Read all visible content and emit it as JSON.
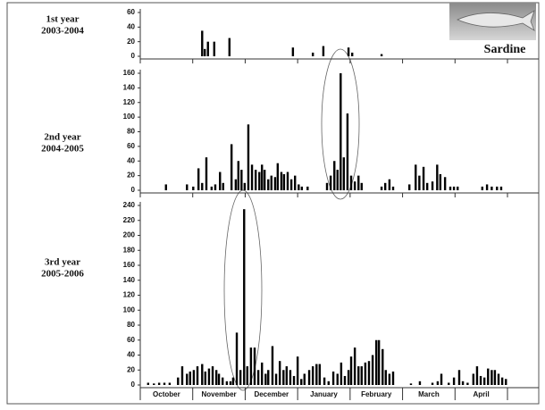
{
  "chart_data": [
    {
      "type": "bar",
      "title": "1st year",
      "subtitle": "2003-2004",
      "annotation": "Sardine",
      "color": "#000000",
      "xlim": [
        0,
        7
      ],
      "ylim": [
        0,
        60
      ],
      "yticks": [
        0,
        20,
        40,
        60
      ],
      "x": [
        1.18,
        1.23,
        1.29,
        1.41,
        1.7,
        2.91,
        3.29,
        3.49,
        3.97,
        4.04,
        4.6
      ],
      "values": [
        35,
        10,
        20,
        20,
        25,
        12,
        5,
        14,
        12,
        5,
        3
      ]
    },
    {
      "type": "bar",
      "title": "2nd year",
      "subtitle": "2004-2005",
      "color": "#000000",
      "xlim": [
        0,
        7
      ],
      "ylim": [
        0,
        160
      ],
      "yticks": [
        0,
        20,
        40,
        60,
        80,
        100,
        120,
        140,
        160
      ],
      "x": [
        0.49,
        0.89,
        1.01,
        1.11,
        1.18,
        1.26,
        1.36,
        1.43,
        1.52,
        1.58,
        1.74,
        1.82,
        1.87,
        1.93,
        1.99,
        2.06,
        2.13,
        2.2,
        2.27,
        2.32,
        2.37,
        2.44,
        2.5,
        2.57,
        2.62,
        2.69,
        2.74,
        2.81,
        2.88,
        2.95,
        3.02,
        3.08,
        3.19,
        3.56,
        3.63,
        3.7,
        3.76,
        3.82,
        3.88,
        3.95,
        4.02,
        4.09,
        4.16,
        4.22,
        4.6,
        4.67,
        4.75,
        4.82,
        5.13,
        5.25,
        5.32,
        5.4,
        5.47,
        5.57,
        5.66,
        5.72,
        5.81,
        5.91,
        5.98,
        6.05,
        6.52,
        6.61,
        6.7,
        6.8,
        6.88
      ],
      "values": [
        8,
        8,
        5,
        30,
        10,
        45,
        5,
        8,
        25,
        10,
        63,
        15,
        40,
        28,
        10,
        90,
        35,
        28,
        25,
        35,
        28,
        15,
        20,
        18,
        37,
        25,
        22,
        25,
        15,
        20,
        8,
        5,
        5,
        10,
        20,
        40,
        28,
        160,
        45,
        105,
        20,
        12,
        20,
        10,
        5,
        10,
        15,
        5,
        8,
        35,
        20,
        32,
        10,
        12,
        35,
        22,
        18,
        5,
        5,
        5,
        5,
        8,
        5,
        5,
        5
      ]
    },
    {
      "type": "bar",
      "title": "3rd year",
      "subtitle": "2005-2006",
      "color": "#000000",
      "categories": [
        "October",
        "November",
        "December",
        "January",
        "February",
        "March",
        "April"
      ],
      "xlim": [
        0,
        7
      ],
      "ylim": [
        0,
        240
      ],
      "yticks": [
        0,
        20,
        40,
        60,
        80,
        100,
        120,
        140,
        160,
        180,
        200,
        220,
        240
      ],
      "x": [
        0.15,
        0.26,
        0.36,
        0.46,
        0.56,
        0.72,
        0.8,
        0.89,
        0.95,
        1.02,
        1.09,
        1.18,
        1.24,
        1.31,
        1.38,
        1.45,
        1.5,
        1.57,
        1.65,
        1.72,
        1.77,
        1.84,
        1.91,
        1.98,
        2.04,
        2.11,
        2.18,
        2.25,
        2.32,
        2.39,
        2.44,
        2.52,
        2.59,
        2.66,
        2.73,
        2.79,
        2.86,
        2.93,
        3.0,
        3.07,
        3.13,
        3.22,
        3.29,
        3.36,
        3.42,
        3.51,
        3.59,
        3.68,
        3.76,
        3.83,
        3.9,
        3.97,
        4.02,
        4.09,
        4.16,
        4.22,
        4.29,
        4.36,
        4.43,
        4.5,
        4.55,
        4.62,
        4.68,
        4.75,
        4.82,
        5.16,
        5.33,
        5.57,
        5.67,
        5.74,
        5.88,
        5.98,
        6.08,
        6.15,
        6.24,
        6.35,
        6.42,
        6.49,
        6.56,
        6.63,
        6.7,
        6.76,
        6.83,
        6.9,
        6.97
      ],
      "values": [
        3,
        2,
        3,
        3,
        3,
        10,
        25,
        15,
        18,
        20,
        25,
        28,
        18,
        22,
        25,
        20,
        15,
        10,
        5,
        5,
        10,
        70,
        20,
        235,
        25,
        50,
        50,
        20,
        30,
        15,
        20,
        52,
        15,
        32,
        20,
        25,
        20,
        12,
        38,
        8,
        15,
        20,
        25,
        28,
        28,
        10,
        5,
        18,
        15,
        30,
        12,
        20,
        38,
        50,
        25,
        25,
        30,
        32,
        40,
        60,
        60,
        48,
        20,
        15,
        18,
        2,
        5,
        3,
        5,
        15,
        3,
        10,
        20,
        5,
        3,
        15,
        25,
        12,
        10,
        22,
        20,
        20,
        15,
        10,
        8
      ]
    }
  ]
}
